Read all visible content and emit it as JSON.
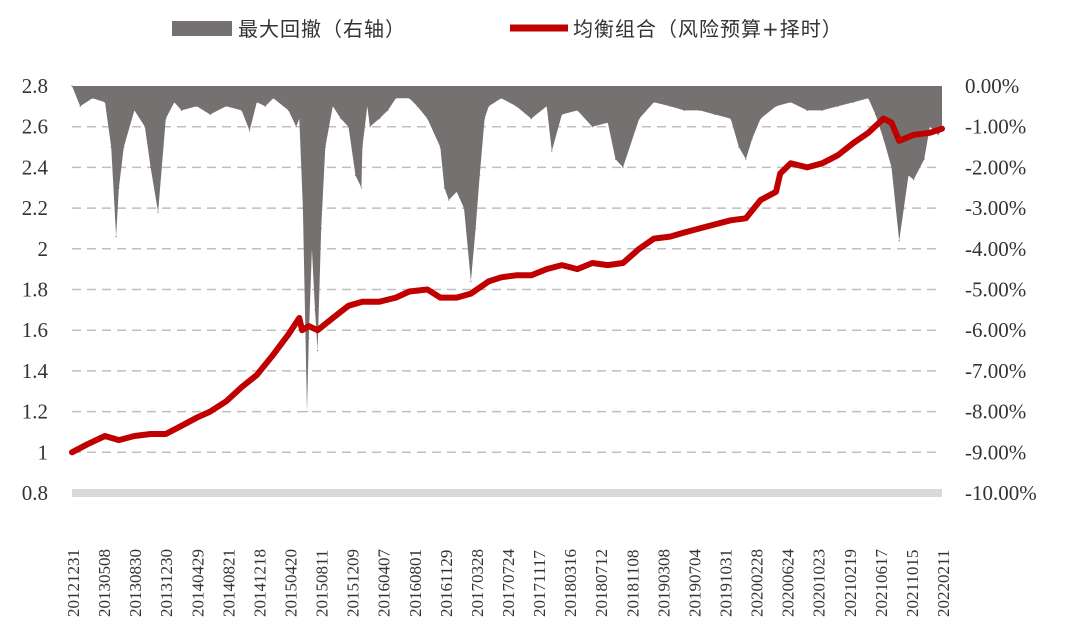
{
  "chart_data": {
    "type": "line",
    "legend": {
      "position": "top",
      "items": [
        {
          "label": "最大回撤（右轴）",
          "type": "area",
          "color": "#767171"
        },
        {
          "label": "均衡组合（风险预算+择时）",
          "type": "line",
          "color": "#c00000"
        }
      ]
    },
    "colors": {
      "drawdown": "#767171",
      "line": "#c00000",
      "grid": "#bfbfbf",
      "baseline": "#d9d9d9"
    },
    "grid": true,
    "y_left": {
      "range": [
        0.8,
        2.8
      ],
      "ticks": [
        "2.8",
        "2.6",
        "2.4",
        "2.2",
        "2",
        "1.8",
        "1.6",
        "1.4",
        "1.2",
        "1",
        "0.8"
      ]
    },
    "y_right": {
      "range": [
        -10.0,
        0.0
      ],
      "ticks": [
        "0.00%",
        "-1.00%",
        "-2.00%",
        "-3.00%",
        "-4.00%",
        "-5.00%",
        "-6.00%",
        "-7.00%",
        "-8.00%",
        "-9.00%",
        "-10.00%"
      ]
    },
    "x_ticks": [
      "20121231",
      "20130508",
      "20130830",
      "20131230",
      "20140429",
      "20140821",
      "20141218",
      "20150420",
      "20150811",
      "20151209",
      "20160407",
      "20160801",
      "20161129",
      "20170328",
      "20170724",
      "20171117",
      "20180316",
      "20180712",
      "20181108",
      "20190308",
      "20190704",
      "20191031",
      "20200228",
      "20200624",
      "20201023",
      "20210219",
      "20210617",
      "20211015",
      "20220211"
    ],
    "series": [
      {
        "name": "均衡组合（风险预算+择时）",
        "axis": "left",
        "x": [
          "20121231",
          "20130301",
          "20130508",
          "20130701",
          "20130830",
          "20131101",
          "20131230",
          "20140301",
          "20140429",
          "20140620",
          "20140821",
          "20141020",
          "20141218",
          "20150220",
          "20150420",
          "20150601",
          "20150612",
          "20150708",
          "20150811",
          "20151009",
          "20151209",
          "20160201",
          "20160407",
          "20160610",
          "20160801",
          "20161010",
          "20161129",
          "20170201",
          "20170328",
          "20170605",
          "20170724",
          "20170920",
          "20171117",
          "20180116",
          "20180316",
          "20180515",
          "20180712",
          "20180910",
          "20181108",
          "20190110",
          "20190308",
          "20190510",
          "20190704",
          "20190902",
          "20191031",
          "20191231",
          "20200228",
          "20200425",
          "20200624",
          "20200710",
          "20200820",
          "20201023",
          "20201220",
          "20210219",
          "20210420",
          "20210617",
          "20210815",
          "20210915",
          "20211015",
          "20211210",
          "20220211",
          "20220330"
        ],
        "values": [
          1.0,
          1.04,
          1.08,
          1.06,
          1.08,
          1.09,
          1.09,
          1.13,
          1.17,
          1.2,
          1.25,
          1.32,
          1.38,
          1.48,
          1.58,
          1.66,
          1.6,
          1.62,
          1.6,
          1.66,
          1.72,
          1.74,
          1.74,
          1.76,
          1.79,
          1.8,
          1.76,
          1.76,
          1.78,
          1.84,
          1.86,
          1.87,
          1.87,
          1.9,
          1.92,
          1.9,
          1.93,
          1.92,
          1.93,
          2.0,
          2.05,
          2.06,
          2.08,
          2.1,
          2.12,
          2.14,
          2.15,
          2.24,
          2.28,
          2.37,
          2.42,
          2.4,
          2.42,
          2.46,
          2.52,
          2.57,
          2.64,
          2.62,
          2.53,
          2.56,
          2.57,
          2.59
        ]
      },
      {
        "name": "最大回撤（右轴）",
        "axis": "right",
        "unit": "%",
        "x": [
          "20121231",
          "20130201",
          "20130320",
          "20130508",
          "20130601",
          "20130620",
          "20130701",
          "20130720",
          "20130830",
          "20131010",
          "20131101",
          "20131130",
          "20131230",
          "20140201",
          "20140301",
          "20140429",
          "20140620",
          "20140821",
          "20141020",
          "20141120",
          "20141218",
          "20150120",
          "20150220",
          "20150420",
          "20150520",
          "20150601",
          "20150615",
          "20150701",
          "20150708",
          "20150720",
          "20150801",
          "20150811",
          "20150825",
          "20150910",
          "20151009",
          "20151109",
          "20151209",
          "20160105",
          "20160128",
          "20160201",
          "20160220",
          "20160301",
          "20160407",
          "20160510",
          "20160610",
          "20160801",
          "20160901",
          "20161010",
          "20161129",
          "20161215",
          "20170101",
          "20170201",
          "20170301",
          "20170328",
          "20170415",
          "20170501",
          "20170520",
          "20170605",
          "20170724",
          "20170920",
          "20171117",
          "20180116",
          "20180205",
          "20180316",
          "20180515",
          "20180712",
          "20180910",
          "20181010",
          "20181108",
          "20190110",
          "20190308",
          "20190510",
          "20190704",
          "20190902",
          "20191031",
          "20191231",
          "20200201",
          "20200228",
          "20200323",
          "20200425",
          "20200624",
          "20200820",
          "20201023",
          "20201220",
          "20210219",
          "20210420",
          "20210617",
          "20210715",
          "20210815",
          "20210915",
          "20211015",
          "20211120",
          "20211210",
          "20220120",
          "20220211",
          "20220315",
          "20220330"
        ],
        "values": [
          0,
          -0.5,
          -0.3,
          -0.4,
          -1.5,
          -3.7,
          -2.5,
          -1.5,
          -0.6,
          -1.0,
          -2.0,
          -3.1,
          -0.8,
          -0.4,
          -0.6,
          -0.5,
          -0.7,
          -0.5,
          -0.6,
          -1.1,
          -0.4,
          -0.5,
          -0.3,
          -0.6,
          -1.0,
          -0.8,
          -3.0,
          -8.0,
          -6.2,
          -4.0,
          -5.5,
          -6.5,
          -3.5,
          -1.5,
          -0.5,
          -0.8,
          -1.0,
          -2.2,
          -2.5,
          -1.5,
          -0.5,
          -1.0,
          -0.8,
          -0.6,
          -0.3,
          -0.3,
          -0.5,
          -0.8,
          -1.5,
          -2.5,
          -2.8,
          -2.6,
          -3.0,
          -4.8,
          -3.5,
          -2.2,
          -0.8,
          -0.5,
          -0.3,
          -0.5,
          -0.8,
          -0.5,
          -1.6,
          -0.7,
          -0.6,
          -1.0,
          -0.9,
          -1.8,
          -2.0,
          -0.8,
          -0.4,
          -0.5,
          -0.6,
          -0.6,
          -0.7,
          -0.8,
          -1.5,
          -1.8,
          -1.3,
          -0.8,
          -0.5,
          -0.4,
          -0.6,
          -0.6,
          -0.5,
          -0.4,
          -0.3,
          -0.7,
          -1.3,
          -2.0,
          -3.8,
          -2.2,
          -2.3,
          -1.8,
          -1.0,
          -1.2,
          -1.1
        ]
      }
    ]
  }
}
